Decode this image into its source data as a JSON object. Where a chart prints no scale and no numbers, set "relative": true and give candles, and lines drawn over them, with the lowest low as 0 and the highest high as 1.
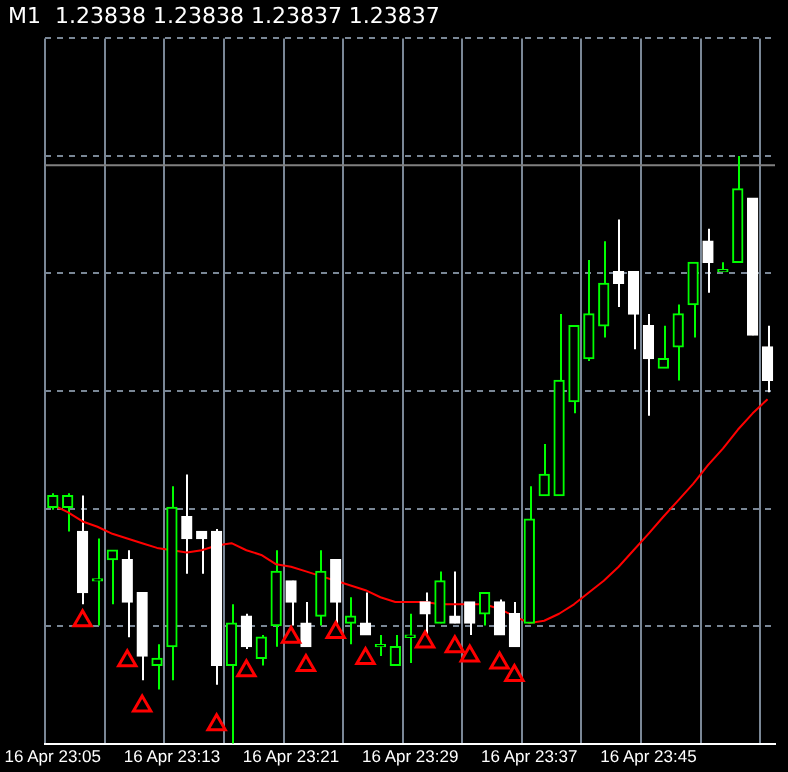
{
  "chart_data": {
    "type": "candlestick",
    "title": "M1  1.23838 1.23838 1.23837 1.23837",
    "relative": true,
    "colors": [
      "#00ff00",
      "#00ff00",
      "#ffffff",
      "#00ff00",
      "#00ff00",
      "#ffffff",
      "#ffffff",
      "#00ff00",
      "#00ff00",
      "#ffffff",
      "#ffffff",
      "#ffffff",
      "#00ff00",
      "#ffffff",
      "#00ff00",
      "#00ff00",
      "#ffffff",
      "#ffffff",
      "#00ff00",
      "#ffffff",
      "#00ff00",
      "#ffffff",
      "#00ff00",
      "#00ff00",
      "#00ff00",
      "#ffffff",
      "#00ff00",
      "#ffffff",
      "#ffffff",
      "#00ff00",
      "#ffffff",
      "#ffffff",
      "#00ff00",
      "#00ff00",
      "#00ff00",
      "#00ff00",
      "#00ff00",
      "#00ff00",
      "#ffffff",
      "#ffffff",
      "#ffffff",
      "#00ff00",
      "#00ff00",
      "#00ff00",
      "#ffffff",
      "#00ff00",
      "#00ff00",
      "#ffffff",
      "#ffffff"
    ],
    "grid": true,
    "legend": false,
    "categories": [
      "16 Apr 23:05",
      null,
      null,
      null,
      null,
      null,
      null,
      null,
      "16 Apr 23:13",
      null,
      null,
      null,
      null,
      null,
      null,
      null,
      "16 Apr 23:21",
      null,
      null,
      null,
      null,
      null,
      null,
      null,
      "16 Apr 23:29",
      null,
      null,
      null,
      null,
      null,
      null,
      null,
      "16 Apr 23:37",
      null,
      null,
      null,
      null,
      null,
      null,
      null,
      "16 Apr 23:45",
      null,
      null,
      null,
      null,
      null,
      null,
      null,
      null
    ],
    "ohlc": [
      [
        0.402,
        0.426,
        0.398,
        0.422
      ],
      [
        0.402,
        0.426,
        0.361,
        0.422
      ],
      [
        0.361,
        0.422,
        0.237,
        0.257
      ],
      [
        0.277,
        0.349,
        0.201,
        0.277
      ],
      [
        0.313,
        0.329,
        0.237,
        0.329
      ],
      [
        0.313,
        0.329,
        0.181,
        0.241
      ],
      [
        0.257,
        0.257,
        0.108,
        0.149
      ],
      [
        0.133,
        0.169,
        0.092,
        0.145
      ],
      [
        0.165,
        0.438,
        0.108,
        0.402
      ],
      [
        0.386,
        0.458,
        0.289,
        0.349
      ],
      [
        0.361,
        0.361,
        0.289,
        0.349
      ],
      [
        0.361,
        0.365,
        0.1,
        0.133
      ],
      [
        0.133,
        0.237,
        0,
        0.205
      ],
      [
        0.217,
        0.221,
        0.161,
        0.165
      ],
      [
        0.145,
        0.185,
        0.133,
        0.181
      ],
      [
        0.201,
        0.329,
        0.165,
        0.293
      ],
      [
        0.277,
        0.277,
        0.201,
        0.241
      ],
      [
        0.205,
        0.241,
        0.165,
        0.165
      ],
      [
        0.217,
        0.329,
        0.201,
        0.293
      ],
      [
        0.313,
        0.313,
        0.201,
        0.241
      ],
      [
        0.205,
        0.249,
        0.169,
        0.217
      ],
      [
        0.205,
        0.257,
        0.185,
        0.185
      ],
      [
        0.165,
        0.185,
        0.149,
        0.165
      ],
      [
        0.133,
        0.185,
        0.133,
        0.165
      ],
      [
        0.181,
        0.221,
        0.137,
        0.181
      ],
      [
        0.241,
        0.257,
        0.181,
        0.221
      ],
      [
        0.205,
        0.293,
        0.205,
        0.277
      ],
      [
        0.217,
        0.293,
        0.205,
        0.205
      ],
      [
        0.241,
        0.241,
        0.185,
        0.205
      ],
      [
        0.221,
        0.257,
        0.201,
        0.257
      ],
      [
        0.241,
        0.245,
        0.185,
        0.185
      ],
      [
        0.221,
        0.241,
        0.165,
        0.165
      ],
      [
        0.205,
        0.438,
        0.205,
        0.382
      ],
      [
        0.422,
        0.51,
        0.422,
        0.458
      ],
      [
        0.422,
        0.731,
        0.422,
        0.618
      ],
      [
        0.582,
        0.711,
        0.562,
        0.711
      ],
      [
        0.655,
        0.823,
        0.651,
        0.731
      ],
      [
        0.711,
        0.855,
        0.691,
        0.783
      ],
      [
        0.803,
        0.892,
        0.743,
        0.783
      ],
      [
        0.803,
        0.803,
        0.671,
        0.731
      ],
      [
        0.711,
        0.731,
        0.558,
        0.655
      ],
      [
        0.639,
        0.711,
        0.639,
        0.655
      ],
      [
        0.675,
        0.747,
        0.618,
        0.731
      ],
      [
        0.747,
        0.819,
        0.691,
        0.819
      ],
      [
        0.855,
        0.876,
        0.767,
        0.819
      ],
      [
        0.803,
        0.819,
        0.803,
        0.803
      ],
      [
        0.819,
        1,
        0.819,
        0.944
      ],
      [
        0.928,
        0.928,
        0.695,
        0.695
      ],
      [
        0.675,
        0.711,
        0.598,
        0.618
      ]
    ],
    "series": [
      {
        "type": "line",
        "color": "#ff0000",
        "values": [
          0.406,
          0.394,
          0.378,
          0.369,
          0.357,
          0.349,
          0.341,
          0.333,
          0.329,
          0.325,
          0.329,
          0.337,
          0.341,
          0.329,
          0.321,
          0.305,
          0.301,
          0.293,
          0.285,
          0.277,
          0.269,
          0.261,
          0.249,
          0.241,
          0.241,
          0.241,
          0.237,
          0.237,
          0.237,
          0.237,
          0.229,
          0.217,
          0.205,
          0.209,
          0.221,
          0.237,
          0.257,
          0.277,
          0.301,
          0.329,
          0.357,
          0.386,
          0.414,
          0.442,
          0.474,
          0.502,
          0.534,
          0.562,
          0.586
        ]
      },
      {
        "type": "scatter",
        "color": "#ff0000",
        "marker": "triangle",
        "values": [
          null,
          null,
          0.209,
          null,
          null,
          0.141,
          0.064,
          null,
          null,
          null,
          null,
          0.032,
          null,
          0.124,
          null,
          null,
          0.181,
          0.133,
          null,
          0.189,
          null,
          0.145,
          null,
          null,
          null,
          0.173,
          null,
          0.165,
          0.149,
          null,
          0.137,
          0.116,
          null,
          null,
          null,
          null,
          null,
          null,
          null,
          null,
          null,
          null,
          null,
          null,
          null,
          null,
          null,
          null,
          null
        ]
      }
    ],
    "ref_lines": [
      {
        "axis": "y",
        "value": 0.984,
        "color": "#808080"
      }
    ]
  }
}
